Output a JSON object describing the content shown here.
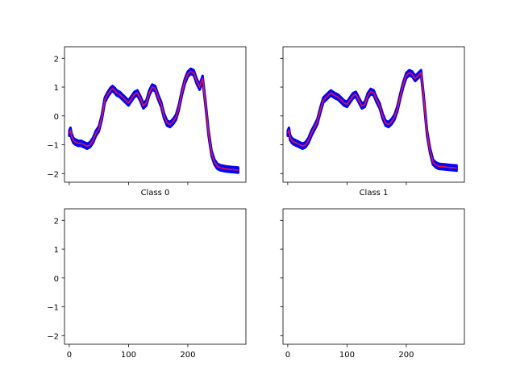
{
  "chart_data": [
    {
      "type": "line",
      "title": "",
      "xlabel": "Class 0",
      "ylabel": "",
      "xlim": [
        -8,
        298
      ],
      "ylim": [
        -2.3,
        2.4
      ],
      "xticks": [
        0,
        100,
        200
      ],
      "yticks": [
        -2,
        -1,
        0,
        1,
        2
      ],
      "grid": false,
      "legend": "none",
      "x_tick_labels_visible": false,
      "y_tick_labels_visible": true,
      "band_color": "#0000ff",
      "series_color": "#dc143c",
      "series": [
        {
          "name": "",
          "x": [
            0,
            2,
            4,
            7,
            10,
            15,
            20,
            25,
            30,
            35,
            40,
            45,
            50,
            55,
            60,
            65,
            70,
            73,
            76,
            80,
            85,
            90,
            95,
            100,
            105,
            110,
            115,
            120,
            125,
            130,
            135,
            140,
            145,
            150,
            155,
            160,
            165,
            170,
            175,
            180,
            185,
            190,
            195,
            200,
            205,
            210,
            215,
            220,
            225,
            230,
            235,
            240,
            245,
            250,
            255,
            260,
            265,
            270,
            275,
            280,
            285
          ],
          "y": [
            -0.6,
            -0.5,
            -0.7,
            -0.85,
            -0.9,
            -0.95,
            -0.95,
            -1.0,
            -1.05,
            -1.0,
            -0.85,
            -0.6,
            -0.45,
            -0.05,
            0.55,
            0.75,
            0.9,
            0.95,
            0.9,
            0.8,
            0.75,
            0.65,
            0.55,
            0.45,
            0.6,
            0.75,
            0.8,
            0.6,
            0.35,
            0.45,
            0.8,
            1.0,
            0.95,
            0.65,
            0.4,
            0.0,
            -0.25,
            -0.3,
            -0.2,
            -0.05,
            0.3,
            0.8,
            1.2,
            1.45,
            1.55,
            1.5,
            1.2,
            1.0,
            1.3,
            0.4,
            -0.6,
            -1.3,
            -1.6,
            -1.75,
            -1.8,
            -1.82,
            -1.84,
            -1.85,
            -1.86,
            -1.87,
            -1.88
          ],
          "spread": 0.09
        }
      ]
    },
    {
      "type": "line",
      "title": "",
      "xlabel": "Class 1",
      "ylabel": "",
      "xlim": [
        -8,
        298
      ],
      "ylim": [
        -2.3,
        2.4
      ],
      "xticks": [
        0,
        100,
        200
      ],
      "yticks": [
        -2,
        -1,
        0,
        1,
        2
      ],
      "grid": false,
      "legend": "none",
      "x_tick_labels_visible": false,
      "y_tick_labels_visible": false,
      "band_color": "#0000ff",
      "series_color": "#dc143c",
      "series": [
        {
          "name": "",
          "x": [
            0,
            2,
            4,
            7,
            10,
            15,
            20,
            25,
            30,
            35,
            40,
            45,
            50,
            55,
            60,
            65,
            70,
            73,
            76,
            80,
            85,
            90,
            95,
            100,
            105,
            110,
            115,
            120,
            125,
            130,
            135,
            140,
            145,
            150,
            155,
            160,
            165,
            170,
            175,
            180,
            185,
            190,
            195,
            200,
            205,
            210,
            215,
            220,
            225,
            230,
            235,
            240,
            245,
            250,
            255,
            260,
            265,
            270,
            275,
            280,
            285
          ],
          "y": [
            -0.6,
            -0.5,
            -0.75,
            -0.85,
            -0.9,
            -0.95,
            -1.0,
            -1.05,
            -1.0,
            -0.85,
            -0.6,
            -0.4,
            -0.2,
            0.2,
            0.55,
            0.65,
            0.75,
            0.8,
            0.75,
            0.7,
            0.65,
            0.55,
            0.45,
            0.4,
            0.55,
            0.7,
            0.75,
            0.55,
            0.35,
            0.4,
            0.7,
            0.85,
            0.8,
            0.55,
            0.35,
            0.0,
            -0.25,
            -0.3,
            -0.2,
            -0.05,
            0.25,
            0.7,
            1.1,
            1.4,
            1.5,
            1.45,
            1.3,
            1.4,
            1.5,
            0.5,
            -0.6,
            -1.2,
            -1.6,
            -1.7,
            -1.75,
            -1.76,
            -1.77,
            -1.78,
            -1.79,
            -1.8,
            -1.81
          ],
          "spread": 0.09
        }
      ]
    },
    {
      "type": "line",
      "title": "",
      "xlabel": "",
      "ylabel": "",
      "xlim": [
        -8,
        298
      ],
      "ylim": [
        -2.3,
        2.4
      ],
      "xticks": [
        0,
        100,
        200
      ],
      "yticks": [
        -2,
        -1,
        0,
        1,
        2
      ],
      "grid": false,
      "legend": "none",
      "x_tick_labels_visible": true,
      "y_tick_labels_visible": true,
      "series": []
    },
    {
      "type": "line",
      "title": "",
      "xlabel": "",
      "ylabel": "",
      "xlim": [
        -8,
        298
      ],
      "ylim": [
        -2.3,
        2.4
      ],
      "xticks": [
        0,
        100,
        200
      ],
      "yticks": [
        -2,
        -1,
        0,
        1,
        2
      ],
      "grid": false,
      "legend": "none",
      "x_tick_labels_visible": true,
      "y_tick_labels_visible": false,
      "series": []
    }
  ]
}
